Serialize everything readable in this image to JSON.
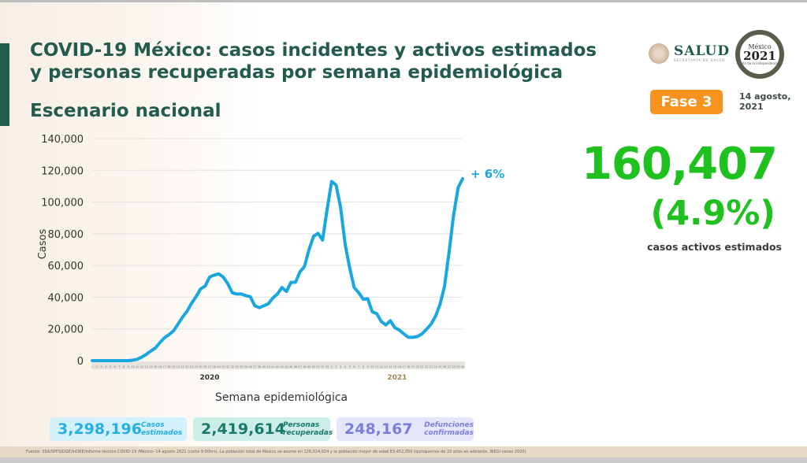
{
  "header": {
    "title": "COVID-19 México: casos incidentes y activos estimados y personas recuperadas por semana epidemiológica",
    "subtitle": "Escenario nacional",
    "brand": "SALUD",
    "brand_sub": "SECRETARÍA DE SALUD",
    "logo2021": {
      "line1": "México",
      "line2": "2021",
      "line3": "Año de la Independencia"
    },
    "phase": "Fase 3",
    "date_line1": "14 agosto,",
    "date_line2": "2021",
    "colors": {
      "primary": "#235b4e",
      "phase": "#f7921e",
      "highlight": "#1fc11f"
    }
  },
  "summary": {
    "active_cases": "160,407",
    "active_pct": "(4.9%)",
    "active_label": "casos activos estimados"
  },
  "stats": [
    {
      "value": "3,298,196",
      "label1": "Casos",
      "label2": "estimados"
    },
    {
      "value": "2,419,614",
      "label1": "Personas",
      "label2": "recuperadas"
    },
    {
      "value": "248,167",
      "label1": "Defunciones",
      "label2": "confirmadas"
    }
  ],
  "footer": "Fuente: SSA/SPPS/DGE/InDRE/Informe técnico.COVID-19 /México- 14 agosto 2021 (corte 9:00hrs). La población total de México se asume en 126,014,024 y la población mayor de edad 83,452,050 (quinquenios de 20 años en adelante, INEGI censo 2020)",
  "chart_data": {
    "type": "line",
    "title": "",
    "xlabel": "Semana epidemiológica",
    "ylabel": "Casos",
    "ylim": [
      0,
      140000
    ],
    "yticks": [
      "0",
      "20,000",
      "40,000",
      "60,000",
      "80,000",
      "100,000",
      "120,000",
      "140,000"
    ],
    "grid": true,
    "color": "#1aa7e0",
    "year_labels": [
      "2020",
      "2021"
    ],
    "annotation": "+ 6%",
    "weeks_2020": 53,
    "weeks_2021": 30,
    "values": [
      0,
      0,
      0,
      0,
      0,
      0,
      0,
      0,
      0,
      300,
      900,
      2300,
      4000,
      6100,
      8000,
      11400,
      14400,
      16400,
      18800,
      23000,
      27400,
      31200,
      36200,
      40300,
      45300,
      47000,
      52700,
      53900,
      54700,
      52700,
      48600,
      42800,
      42000,
      42000,
      41000,
      40300,
      34600,
      33400,
      34600,
      35900,
      39500,
      42000,
      46100,
      43600,
      49400,
      49400,
      56000,
      59400,
      70000,
      78400,
      80300,
      76000,
      95000,
      113000,
      110600,
      96500,
      73400,
      58500,
      46100,
      42800,
      38700,
      39000,
      30800,
      29600,
      24600,
      22500,
      25100,
      20800,
      19200,
      16900,
      14700,
      14700,
      15200,
      16900,
      19700,
      23000,
      27900,
      35400,
      47000,
      68400,
      91600,
      109000,
      114700
    ]
  }
}
